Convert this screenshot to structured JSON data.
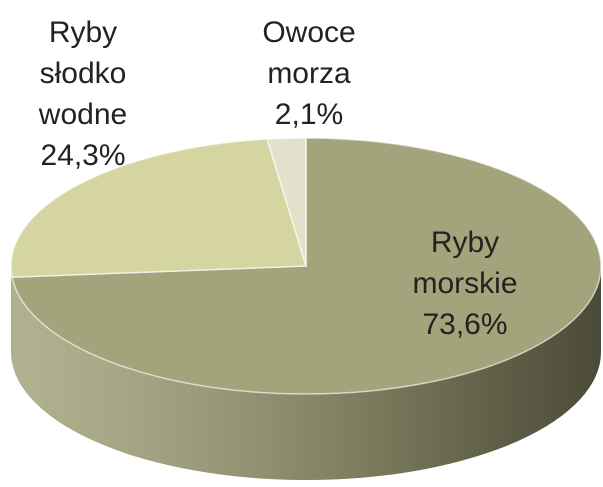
{
  "chart_data": {
    "type": "pie3d",
    "categories": [
      "Ryby morskie",
      "Ryby słodko wodne",
      "Owoce morza"
    ],
    "values": [
      73.6,
      24.3,
      2.1
    ],
    "value_labels": [
      "73,6%",
      "24,3%",
      "2,1%"
    ],
    "colors": [
      "#a4a47c",
      "#d5d5a2",
      "#e2e2cc"
    ]
  }
}
